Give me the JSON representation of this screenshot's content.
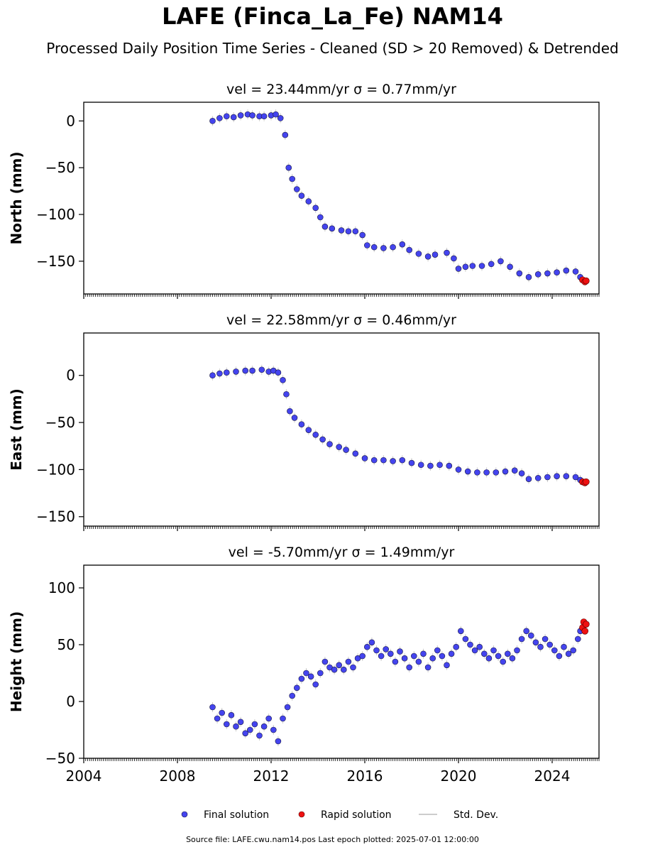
{
  "figure": {
    "title": "LAFE (Finca_La_Fe) NAM14",
    "subtitle": "Processed Daily Position Time Series - Cleaned (SD > 20 Removed) & Detrended",
    "source_line": "Source file: LAFE.cwu.nam14.pos  Last epoch plotted: 2025-07-01 12:00:00"
  },
  "colors": {
    "final": "#4444ee",
    "final_edge": "#1a1a40",
    "rapid": "#ee1111",
    "stddev": "#cccccc"
  },
  "chart_data": [
    {
      "type": "scatter",
      "panel": "north",
      "title": "vel = 23.44mm/yr   σ = 0.77mm/yr",
      "ylabel": "North (mm)",
      "xlim": [
        2004.0,
        2026.0
      ],
      "ylim": [
        -185,
        20
      ],
      "yticks": [
        0,
        -50,
        -100,
        -150
      ],
      "ytick_labels": [
        "0",
        "−50",
        "−100",
        "−150"
      ],
      "grid": false,
      "series": [
        {
          "name": "Final solution",
          "points": [
            [
              2009.5,
              0
            ],
            [
              2009.8,
              3
            ],
            [
              2010.1,
              5
            ],
            [
              2010.4,
              4
            ],
            [
              2010.7,
              6
            ],
            [
              2011.0,
              7
            ],
            [
              2011.2,
              6
            ],
            [
              2011.5,
              5
            ],
            [
              2011.7,
              5
            ],
            [
              2012.0,
              6
            ],
            [
              2012.2,
              7
            ],
            [
              2012.4,
              3
            ],
            [
              2012.6,
              -15
            ],
            [
              2012.75,
              -50
            ],
            [
              2012.9,
              -62
            ],
            [
              2013.1,
              -73
            ],
            [
              2013.3,
              -80
            ],
            [
              2013.6,
              -86
            ],
            [
              2013.9,
              -93
            ],
            [
              2014.1,
              -103
            ],
            [
              2014.3,
              -113
            ],
            [
              2014.6,
              -115
            ],
            [
              2015.0,
              -117
            ],
            [
              2015.3,
              -118
            ],
            [
              2015.6,
              -118
            ],
            [
              2015.9,
              -122
            ],
            [
              2016.1,
              -133
            ],
            [
              2016.4,
              -135
            ],
            [
              2016.8,
              -136
            ],
            [
              2017.2,
              -135
            ],
            [
              2017.6,
              -132
            ],
            [
              2017.9,
              -138
            ],
            [
              2018.3,
              -142
            ],
            [
              2018.7,
              -145
            ],
            [
              2019.0,
              -143
            ],
            [
              2019.5,
              -141
            ],
            [
              2019.8,
              -147
            ],
            [
              2020.0,
              -158
            ],
            [
              2020.3,
              -156
            ],
            [
              2020.6,
              -155
            ],
            [
              2021.0,
              -155
            ],
            [
              2021.4,
              -153
            ],
            [
              2021.8,
              -150
            ],
            [
              2022.2,
              -156
            ],
            [
              2022.6,
              -163
            ],
            [
              2023.0,
              -167
            ],
            [
              2023.4,
              -164
            ],
            [
              2023.8,
              -163
            ],
            [
              2024.2,
              -162
            ],
            [
              2024.6,
              -160
            ],
            [
              2025.0,
              -161
            ],
            [
              2025.2,
              -167
            ]
          ]
        },
        {
          "name": "Rapid solution",
          "points": [
            [
              2025.3,
              -170
            ],
            [
              2025.4,
              -172
            ],
            [
              2025.45,
              -171
            ]
          ]
        }
      ]
    },
    {
      "type": "scatter",
      "panel": "east",
      "title": "vel = 22.58mm/yr   σ = 0.46mm/yr",
      "ylabel": "East (mm)",
      "xlim": [
        2004.0,
        2026.0
      ],
      "ylim": [
        -160,
        45
      ],
      "yticks": [
        0,
        -50,
        -100,
        -150
      ],
      "ytick_labels": [
        "0",
        "−50",
        "−100",
        "−150"
      ],
      "grid": false,
      "series": [
        {
          "name": "Final solution",
          "points": [
            [
              2009.5,
              0
            ],
            [
              2009.8,
              2
            ],
            [
              2010.1,
              3
            ],
            [
              2010.5,
              4
            ],
            [
              2010.9,
              5
            ],
            [
              2011.2,
              5
            ],
            [
              2011.6,
              6
            ],
            [
              2011.9,
              4
            ],
            [
              2012.1,
              5
            ],
            [
              2012.3,
              3
            ],
            [
              2012.5,
              -5
            ],
            [
              2012.65,
              -20
            ],
            [
              2012.8,
              -38
            ],
            [
              2013.0,
              -45
            ],
            [
              2013.3,
              -52
            ],
            [
              2013.6,
              -58
            ],
            [
              2013.9,
              -63
            ],
            [
              2014.2,
              -68
            ],
            [
              2014.5,
              -73
            ],
            [
              2014.9,
              -76
            ],
            [
              2015.2,
              -79
            ],
            [
              2015.6,
              -83
            ],
            [
              2016.0,
              -88
            ],
            [
              2016.4,
              -90
            ],
            [
              2016.8,
              -90
            ],
            [
              2017.2,
              -91
            ],
            [
              2017.6,
              -90
            ],
            [
              2018.0,
              -93
            ],
            [
              2018.4,
              -95
            ],
            [
              2018.8,
              -96
            ],
            [
              2019.2,
              -95
            ],
            [
              2019.6,
              -96
            ],
            [
              2020.0,
              -100
            ],
            [
              2020.4,
              -102
            ],
            [
              2020.8,
              -103
            ],
            [
              2021.2,
              -103
            ],
            [
              2021.6,
              -103
            ],
            [
              2022.0,
              -102
            ],
            [
              2022.4,
              -101
            ],
            [
              2022.7,
              -104
            ],
            [
              2023.0,
              -110
            ],
            [
              2023.4,
              -109
            ],
            [
              2023.8,
              -108
            ],
            [
              2024.2,
              -107
            ],
            [
              2024.6,
              -107
            ],
            [
              2025.0,
              -108
            ],
            [
              2025.2,
              -111
            ]
          ]
        },
        {
          "name": "Rapid solution",
          "points": [
            [
              2025.3,
              -113
            ],
            [
              2025.4,
              -114
            ],
            [
              2025.45,
              -113
            ]
          ]
        }
      ]
    },
    {
      "type": "scatter",
      "panel": "height",
      "title": "vel = -5.70mm/yr   σ = 1.49mm/yr",
      "ylabel": "Height (mm)",
      "xlim": [
        2004.0,
        2026.0
      ],
      "ylim": [
        -50,
        120
      ],
      "yticks": [
        100,
        50,
        0,
        -50
      ],
      "ytick_labels": [
        "100",
        "50",
        "0",
        "−50"
      ],
      "xticks": [
        2004,
        2008,
        2012,
        2016,
        2020,
        2024
      ],
      "xtick_labels": [
        "2004",
        "2008",
        "2012",
        "2016",
        "2020",
        "2024"
      ],
      "grid": false,
      "series": [
        {
          "name": "Final solution",
          "points": [
            [
              2009.5,
              -5
            ],
            [
              2009.7,
              -15
            ],
            [
              2009.9,
              -10
            ],
            [
              2010.1,
              -20
            ],
            [
              2010.3,
              -12
            ],
            [
              2010.5,
              -22
            ],
            [
              2010.7,
              -18
            ],
            [
              2010.9,
              -28
            ],
            [
              2011.1,
              -25
            ],
            [
              2011.3,
              -20
            ],
            [
              2011.5,
              -30
            ],
            [
              2011.7,
              -22
            ],
            [
              2011.9,
              -15
            ],
            [
              2012.1,
              -25
            ],
            [
              2012.3,
              -35
            ],
            [
              2012.5,
              -15
            ],
            [
              2012.7,
              -5
            ],
            [
              2012.9,
              5
            ],
            [
              2013.1,
              12
            ],
            [
              2013.3,
              20
            ],
            [
              2013.5,
              25
            ],
            [
              2013.7,
              22
            ],
            [
              2013.9,
              15
            ],
            [
              2014.1,
              25
            ],
            [
              2014.3,
              35
            ],
            [
              2014.5,
              30
            ],
            [
              2014.7,
              28
            ],
            [
              2014.9,
              32
            ],
            [
              2015.1,
              28
            ],
            [
              2015.3,
              35
            ],
            [
              2015.5,
              30
            ],
            [
              2015.7,
              38
            ],
            [
              2015.9,
              40
            ],
            [
              2016.1,
              48
            ],
            [
              2016.3,
              52
            ],
            [
              2016.5,
              45
            ],
            [
              2016.7,
              40
            ],
            [
              2016.9,
              46
            ],
            [
              2017.1,
              42
            ],
            [
              2017.3,
              35
            ],
            [
              2017.5,
              44
            ],
            [
              2017.7,
              38
            ],
            [
              2017.9,
              30
            ],
            [
              2018.1,
              40
            ],
            [
              2018.3,
              35
            ],
            [
              2018.5,
              42
            ],
            [
              2018.7,
              30
            ],
            [
              2018.9,
              38
            ],
            [
              2019.1,
              45
            ],
            [
              2019.3,
              40
            ],
            [
              2019.5,
              32
            ],
            [
              2019.7,
              42
            ],
            [
              2019.9,
              48
            ],
            [
              2020.1,
              62
            ],
            [
              2020.3,
              55
            ],
            [
              2020.5,
              50
            ],
            [
              2020.7,
              45
            ],
            [
              2020.9,
              48
            ],
            [
              2021.1,
              42
            ],
            [
              2021.3,
              38
            ],
            [
              2021.5,
              45
            ],
            [
              2021.7,
              40
            ],
            [
              2021.9,
              35
            ],
            [
              2022.1,
              42
            ],
            [
              2022.3,
              38
            ],
            [
              2022.5,
              45
            ],
            [
              2022.7,
              55
            ],
            [
              2022.9,
              62
            ],
            [
              2023.1,
              58
            ],
            [
              2023.3,
              52
            ],
            [
              2023.5,
              48
            ],
            [
              2023.7,
              55
            ],
            [
              2023.9,
              50
            ],
            [
              2024.1,
              45
            ],
            [
              2024.3,
              40
            ],
            [
              2024.5,
              48
            ],
            [
              2024.7,
              42
            ],
            [
              2024.9,
              45
            ],
            [
              2025.1,
              55
            ],
            [
              2025.2,
              62
            ]
          ]
        },
        {
          "name": "Rapid solution",
          "points": [
            [
              2025.3,
              65
            ],
            [
              2025.35,
              70
            ],
            [
              2025.4,
              62
            ],
            [
              2025.45,
              68
            ]
          ]
        }
      ]
    }
  ],
  "legend": {
    "placement": "bottom-center",
    "items": [
      {
        "label": "Final solution"
      },
      {
        "label": "Rapid solution"
      },
      {
        "label": "Std. Dev."
      }
    ]
  }
}
